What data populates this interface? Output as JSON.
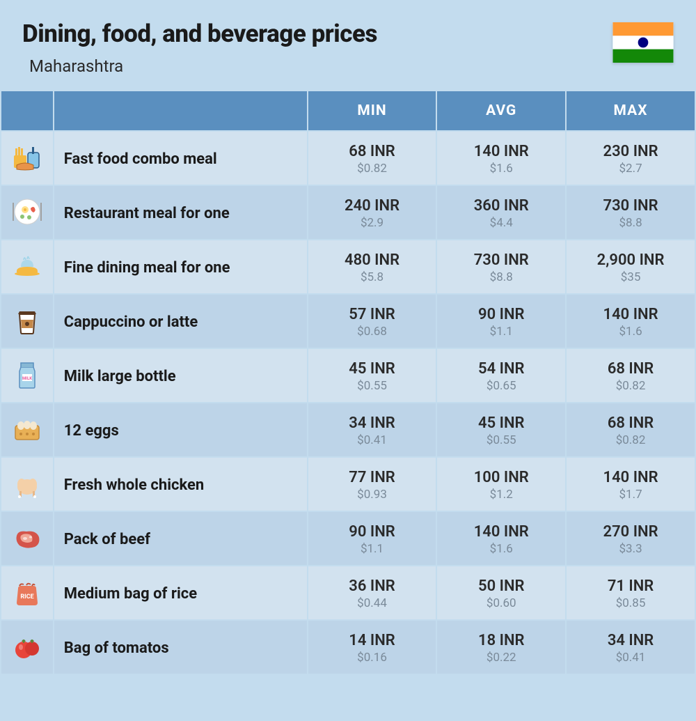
{
  "header": {
    "title": "Dining, food, and beverage prices",
    "subtitle": "Maharashtra"
  },
  "columns": {
    "min": "MIN",
    "avg": "AVG",
    "max": "MAX"
  },
  "colors": {
    "page_bg": "#c3dcee",
    "header_bg": "#5a8fbf",
    "row_odd": "#d2e2ef",
    "row_even": "#bdd4e8",
    "text_primary": "#1a1a1a",
    "text_secondary": "#7a8a99",
    "header_text": "#ffffff"
  },
  "rows": [
    {
      "icon": "fast-food",
      "name": "Fast food combo meal",
      "min": {
        "inr": "68 INR",
        "usd": "$0.82"
      },
      "avg": {
        "inr": "140 INR",
        "usd": "$1.6"
      },
      "max": {
        "inr": "230 INR",
        "usd": "$2.7"
      }
    },
    {
      "icon": "restaurant-meal",
      "name": "Restaurant meal for one",
      "min": {
        "inr": "240 INR",
        "usd": "$2.9"
      },
      "avg": {
        "inr": "360 INR",
        "usd": "$4.4"
      },
      "max": {
        "inr": "730 INR",
        "usd": "$8.8"
      }
    },
    {
      "icon": "fine-dining",
      "name": "Fine dining meal for one",
      "min": {
        "inr": "480 INR",
        "usd": "$5.8"
      },
      "avg": {
        "inr": "730 INR",
        "usd": "$8.8"
      },
      "max": {
        "inr": "2,900 INR",
        "usd": "$35"
      }
    },
    {
      "icon": "coffee",
      "name": "Cappuccino or latte",
      "min": {
        "inr": "57 INR",
        "usd": "$0.68"
      },
      "avg": {
        "inr": "90 INR",
        "usd": "$1.1"
      },
      "max": {
        "inr": "140 INR",
        "usd": "$1.6"
      }
    },
    {
      "icon": "milk",
      "name": "Milk large bottle",
      "min": {
        "inr": "45 INR",
        "usd": "$0.55"
      },
      "avg": {
        "inr": "54 INR",
        "usd": "$0.65"
      },
      "max": {
        "inr": "68 INR",
        "usd": "$0.82"
      }
    },
    {
      "icon": "eggs",
      "name": "12 eggs",
      "min": {
        "inr": "34 INR",
        "usd": "$0.41"
      },
      "avg": {
        "inr": "45 INR",
        "usd": "$0.55"
      },
      "max": {
        "inr": "68 INR",
        "usd": "$0.82"
      }
    },
    {
      "icon": "chicken",
      "name": "Fresh whole chicken",
      "min": {
        "inr": "77 INR",
        "usd": "$0.93"
      },
      "avg": {
        "inr": "100 INR",
        "usd": "$1.2"
      },
      "max": {
        "inr": "140 INR",
        "usd": "$1.7"
      }
    },
    {
      "icon": "beef",
      "name": "Pack of beef",
      "min": {
        "inr": "90 INR",
        "usd": "$1.1"
      },
      "avg": {
        "inr": "140 INR",
        "usd": "$1.6"
      },
      "max": {
        "inr": "270 INR",
        "usd": "$3.3"
      }
    },
    {
      "icon": "rice",
      "name": "Medium bag of rice",
      "min": {
        "inr": "36 INR",
        "usd": "$0.44"
      },
      "avg": {
        "inr": "50 INR",
        "usd": "$0.60"
      },
      "max": {
        "inr": "71 INR",
        "usd": "$0.85"
      }
    },
    {
      "icon": "tomatoes",
      "name": "Bag of tomatos",
      "min": {
        "inr": "14 INR",
        "usd": "$0.16"
      },
      "avg": {
        "inr": "18 INR",
        "usd": "$0.22"
      },
      "max": {
        "inr": "34 INR",
        "usd": "$0.41"
      }
    }
  ]
}
